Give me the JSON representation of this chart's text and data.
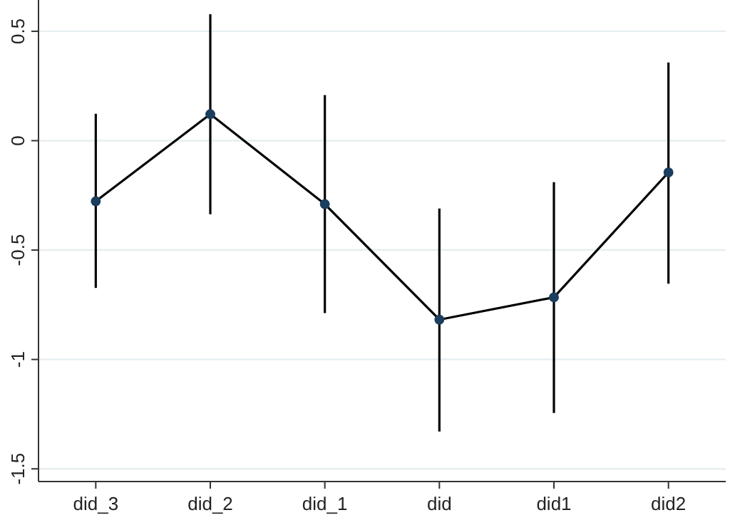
{
  "chart_data": {
    "type": "line",
    "categories": [
      "did_3",
      "did_2",
      "did_1",
      "did",
      "did1",
      "did2"
    ],
    "series": [
      {
        "color": "#000000",
        "values": [
          -0.277,
          0.121,
          -0.29,
          -0.818,
          -0.716,
          -0.145
        ],
        "errors": [
          [
            -0.673,
            0.123
          ],
          [
            -0.336,
            0.578
          ],
          [
            -0.788,
            0.208
          ],
          [
            -1.329,
            -0.31
          ],
          [
            -1.245,
            -0.19
          ],
          [
            -0.654,
            0.357
          ]
        ]
      }
    ],
    "ylim": [
      -1.558,
      0.643
    ],
    "yticks": [
      0.5,
      0,
      -0.5,
      -1,
      -1.5
    ],
    "grid": "y",
    "marker": "circle",
    "line_style": "solid"
  }
}
